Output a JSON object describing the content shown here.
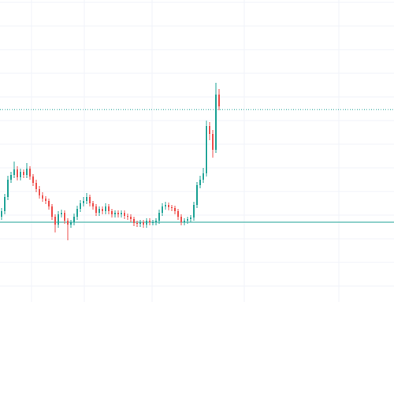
{
  "chart_data": {
    "type": "candlestick",
    "up_color": "#26a69a",
    "down_color": "#ef5350",
    "grid": true,
    "ylim": [
      0,
      383
    ],
    "open": [
      108,
      115,
      133,
      155,
      161,
      168,
      158,
      165,
      161,
      169,
      159,
      151,
      143,
      135,
      131,
      128,
      121,
      108,
      98,
      111,
      113,
      103,
      98,
      101,
      108,
      118,
      125,
      128,
      133,
      125,
      121,
      113,
      118,
      115,
      121,
      115,
      111,
      113,
      111,
      113,
      109,
      108,
      105,
      100,
      99,
      101,
      98,
      103,
      101,
      101,
      103,
      113,
      121,
      123,
      120,
      119,
      115,
      108,
      101,
      103,
      105,
      107,
      123,
      148,
      155,
      163,
      223,
      213,
      193,
      263
    ],
    "high": [
      119,
      137,
      160,
      165,
      178,
      172,
      169,
      168,
      176,
      172,
      162,
      155,
      147,
      139,
      134,
      131,
      124,
      111,
      115,
      117,
      116,
      106,
      104,
      112,
      122,
      129,
      133,
      138,
      136,
      128,
      124,
      121,
      121,
      125,
      124,
      118,
      116,
      116,
      116,
      116,
      112,
      111,
      108,
      103,
      104,
      104,
      106,
      106,
      104,
      106,
      117,
      125,
      127,
      126,
      123,
      122,
      118,
      111,
      106,
      108,
      110,
      127,
      152,
      160,
      170,
      230,
      228,
      218,
      278,
      270
    ],
    "low": [
      104,
      111,
      129,
      151,
      157,
      154,
      154,
      157,
      157,
      155,
      147,
      139,
      131,
      127,
      124,
      117,
      104,
      88,
      94,
      107,
      99,
      78,
      94,
      97,
      104,
      114,
      121,
      124,
      121,
      117,
      109,
      109,
      111,
      111,
      111,
      107,
      107,
      107,
      107,
      105,
      104,
      101,
      96,
      95,
      95,
      94,
      94,
      97,
      97,
      97,
      99,
      109,
      117,
      116,
      115,
      111,
      104,
      97,
      97,
      99,
      101,
      103,
      119,
      144,
      151,
      159,
      205,
      183,
      189,
      243
    ],
    "close": [
      115,
      133,
      155,
      161,
      168,
      158,
      165,
      161,
      169,
      159,
      151,
      143,
      135,
      131,
      128,
      121,
      108,
      98,
      111,
      113,
      103,
      98,
      101,
      108,
      118,
      125,
      128,
      133,
      125,
      121,
      113,
      118,
      115,
      121,
      115,
      111,
      113,
      111,
      113,
      109,
      108,
      105,
      100,
      99,
      101,
      98,
      103,
      101,
      101,
      103,
      113,
      121,
      123,
      120,
      119,
      115,
      108,
      101,
      103,
      105,
      107,
      123,
      148,
      155,
      163,
      223,
      213,
      193,
      263,
      248
    ],
    "price_lines": [
      {
        "value": 244,
        "style": "dotted",
        "color": "#26a69a"
      },
      {
        "value": 101,
        "style": "solid",
        "color": "#26a69a"
      }
    ]
  }
}
